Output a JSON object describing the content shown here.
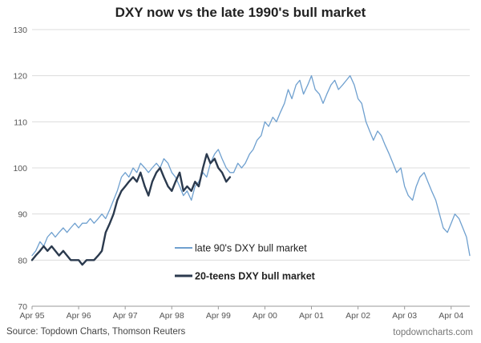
{
  "chart_data": {
    "type": "line",
    "title": "DXY now vs the late 1990's bull market",
    "xlabel": "",
    "ylabel": "",
    "ylim": [
      70,
      130
    ],
    "yticks": [
      70,
      80,
      90,
      100,
      110,
      120,
      130
    ],
    "x_tick_labels": [
      "Apr 95",
      "Apr 96",
      "Apr 97",
      "Apr 98",
      "Apr 99",
      "Apr 00",
      "Apr 01",
      "Apr 02",
      "Apr 03",
      "Apr 04"
    ],
    "xlim": [
      1995.25,
      2004.65
    ],
    "grid": "horizontal",
    "legend_position": "center-bottom",
    "series": [
      {
        "name": "late 90's DXY bull market",
        "color": "#6fa0cf",
        "stroke_width": 1.3,
        "x": [
          1995.25,
          1995.33,
          1995.42,
          1995.5,
          1995.58,
          1995.67,
          1995.75,
          1995.83,
          1995.92,
          1996.0,
          1996.08,
          1996.17,
          1996.25,
          1996.33,
          1996.42,
          1996.5,
          1996.58,
          1996.67,
          1996.75,
          1996.83,
          1996.92,
          1997.0,
          1997.08,
          1997.17,
          1997.25,
          1997.33,
          1997.42,
          1997.5,
          1997.58,
          1997.67,
          1997.75,
          1997.83,
          1997.92,
          1998.0,
          1998.08,
          1998.17,
          1998.25,
          1998.33,
          1998.42,
          1998.5,
          1998.58,
          1998.67,
          1998.75,
          1998.83,
          1998.92,
          1999.0,
          1999.08,
          1999.17,
          1999.25,
          1999.33,
          1999.42,
          1999.5,
          1999.58,
          1999.67,
          1999.75,
          1999.83,
          1999.92,
          2000.0,
          2000.08,
          2000.17,
          2000.25,
          2000.33,
          2000.42,
          2000.5,
          2000.58,
          2000.67,
          2000.75,
          2000.83,
          2000.92,
          2001.0,
          2001.08,
          2001.17,
          2001.25,
          2001.33,
          2001.42,
          2001.5,
          2001.58,
          2001.67,
          2001.75,
          2001.83,
          2001.92,
          2002.0,
          2002.08,
          2002.17,
          2002.25,
          2002.33,
          2002.42,
          2002.5,
          2002.58,
          2002.67,
          2002.75,
          2002.83,
          2002.92,
          2003.0,
          2003.08,
          2003.17,
          2003.25,
          2003.33,
          2003.42,
          2003.5,
          2003.58,
          2003.67,
          2003.75,
          2003.83,
          2003.92,
          2004.0,
          2004.08,
          2004.17,
          2004.25,
          2004.33,
          2004.42,
          2004.5,
          2004.58,
          2004.65
        ],
        "y": [
          81,
          82,
          84,
          83,
          85,
          86,
          85,
          86,
          87,
          86,
          87,
          88,
          87,
          88,
          88,
          89,
          88,
          89,
          90,
          89,
          91,
          93,
          95,
          98,
          99,
          98,
          100,
          99,
          101,
          100,
          99,
          100,
          101,
          100,
          102,
          101,
          99,
          98,
          96,
          94,
          95,
          93,
          96,
          97,
          99,
          98,
          101,
          103,
          104,
          102,
          100,
          99,
          99,
          101,
          100,
          101,
          103,
          104,
          106,
          107,
          110,
          109,
          111,
          110,
          112,
          114,
          117,
          115,
          118,
          119,
          116,
          118,
          120,
          117,
          116,
          114,
          116,
          118,
          119,
          117,
          118,
          119,
          120,
          118,
          115,
          114,
          110,
          108,
          106,
          108,
          107,
          105,
          103,
          101,
          99,
          100,
          96,
          94,
          93,
          96,
          98,
          99,
          97,
          95,
          93,
          90,
          87,
          86,
          88,
          90,
          89,
          87,
          85,
          81
        ]
      },
      {
        "name": "20-teens DXY bull market",
        "color": "#2b3a4e",
        "stroke_width": 2.4,
        "x": [
          1995.25,
          1995.33,
          1995.42,
          1995.5,
          1995.58,
          1995.67,
          1995.75,
          1995.83,
          1995.92,
          1996.0,
          1996.08,
          1996.17,
          1996.25,
          1996.33,
          1996.42,
          1996.5,
          1996.58,
          1996.67,
          1996.75,
          1996.83,
          1996.92,
          1997.0,
          1997.08,
          1997.17,
          1997.25,
          1997.33,
          1997.42,
          1997.5,
          1997.58,
          1997.67,
          1997.75,
          1997.83,
          1997.92,
          1998.0,
          1998.08,
          1998.17,
          1998.25,
          1998.33,
          1998.42,
          1998.5,
          1998.58,
          1998.67,
          1998.75,
          1998.83,
          1998.92,
          1999.0,
          1999.08,
          1999.17,
          1999.25,
          1999.33,
          1999.42,
          1999.5
        ],
        "y": [
          80,
          81,
          82,
          83,
          82,
          83,
          82,
          81,
          82,
          81,
          80,
          80,
          80,
          79,
          80,
          80,
          80,
          81,
          82,
          86,
          88,
          90,
          93,
          95,
          96,
          97,
          98,
          97,
          99,
          96,
          94,
          97,
          99,
          100,
          98,
          96,
          95,
          97,
          99,
          95,
          96,
          95,
          97,
          96,
          100,
          103,
          101,
          102,
          100,
          99,
          97,
          98
        ]
      }
    ]
  },
  "footer": {
    "source": "Source: Topdown Charts, Thomson Reuters",
    "watermark": "topdowncharts.com"
  }
}
